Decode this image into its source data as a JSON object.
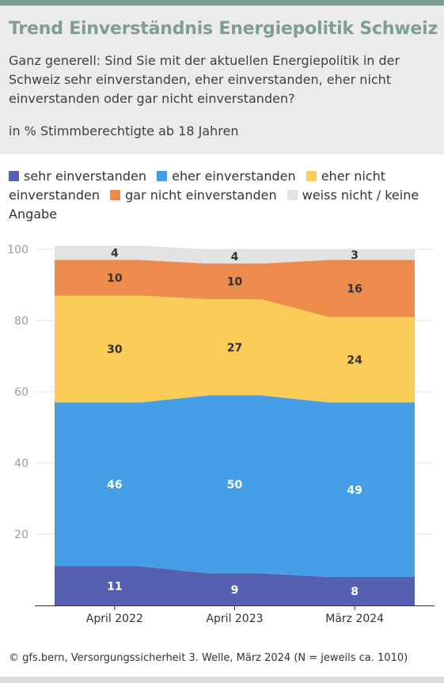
{
  "header": {
    "title": "Trend Einverständnis Energiepolitik Schweiz",
    "question": "Ganz generell: Sind Sie mit der aktuellen Energiepolitik in der Schweiz sehr einverstanden, eher einverstanden, eher nicht einverstanden oder gar nicht einverstanden?",
    "subtitle": "in % Stimmberechtigte ab 18 Jahren"
  },
  "footer": {
    "source": "© gfs.bern, Versorgungssicherheit 3. Welle, März 2024 (N = jeweils ca. 1010)"
  },
  "colors": {
    "title": "#7f9c96",
    "header_bg": "#ebebeb"
  },
  "chart_data": {
    "type": "area",
    "stacked": true,
    "x": [
      "April 2022",
      "April 2023",
      "März 2024"
    ],
    "ylim": [
      0,
      100
    ],
    "yticks": [
      20,
      40,
      60,
      80,
      100
    ],
    "grid": true,
    "legend_position": "top",
    "series": [
      {
        "name": "sehr einverstanden",
        "color": "#5560b0",
        "values": [
          11,
          9,
          8
        ]
      },
      {
        "name": "eher einverstanden",
        "color": "#459ee6",
        "values": [
          46,
          50,
          49
        ]
      },
      {
        "name": "eher nicht einverstanden",
        "color": "#fbcc57",
        "values": [
          30,
          27,
          24
        ]
      },
      {
        "name": "gar nicht einverstanden",
        "color": "#ec8b4c",
        "values": [
          10,
          10,
          16
        ]
      },
      {
        "name": "weiss nicht / keine Angabe",
        "color": "#e2e2e2",
        "values": [
          4,
          4,
          3
        ]
      }
    ]
  }
}
